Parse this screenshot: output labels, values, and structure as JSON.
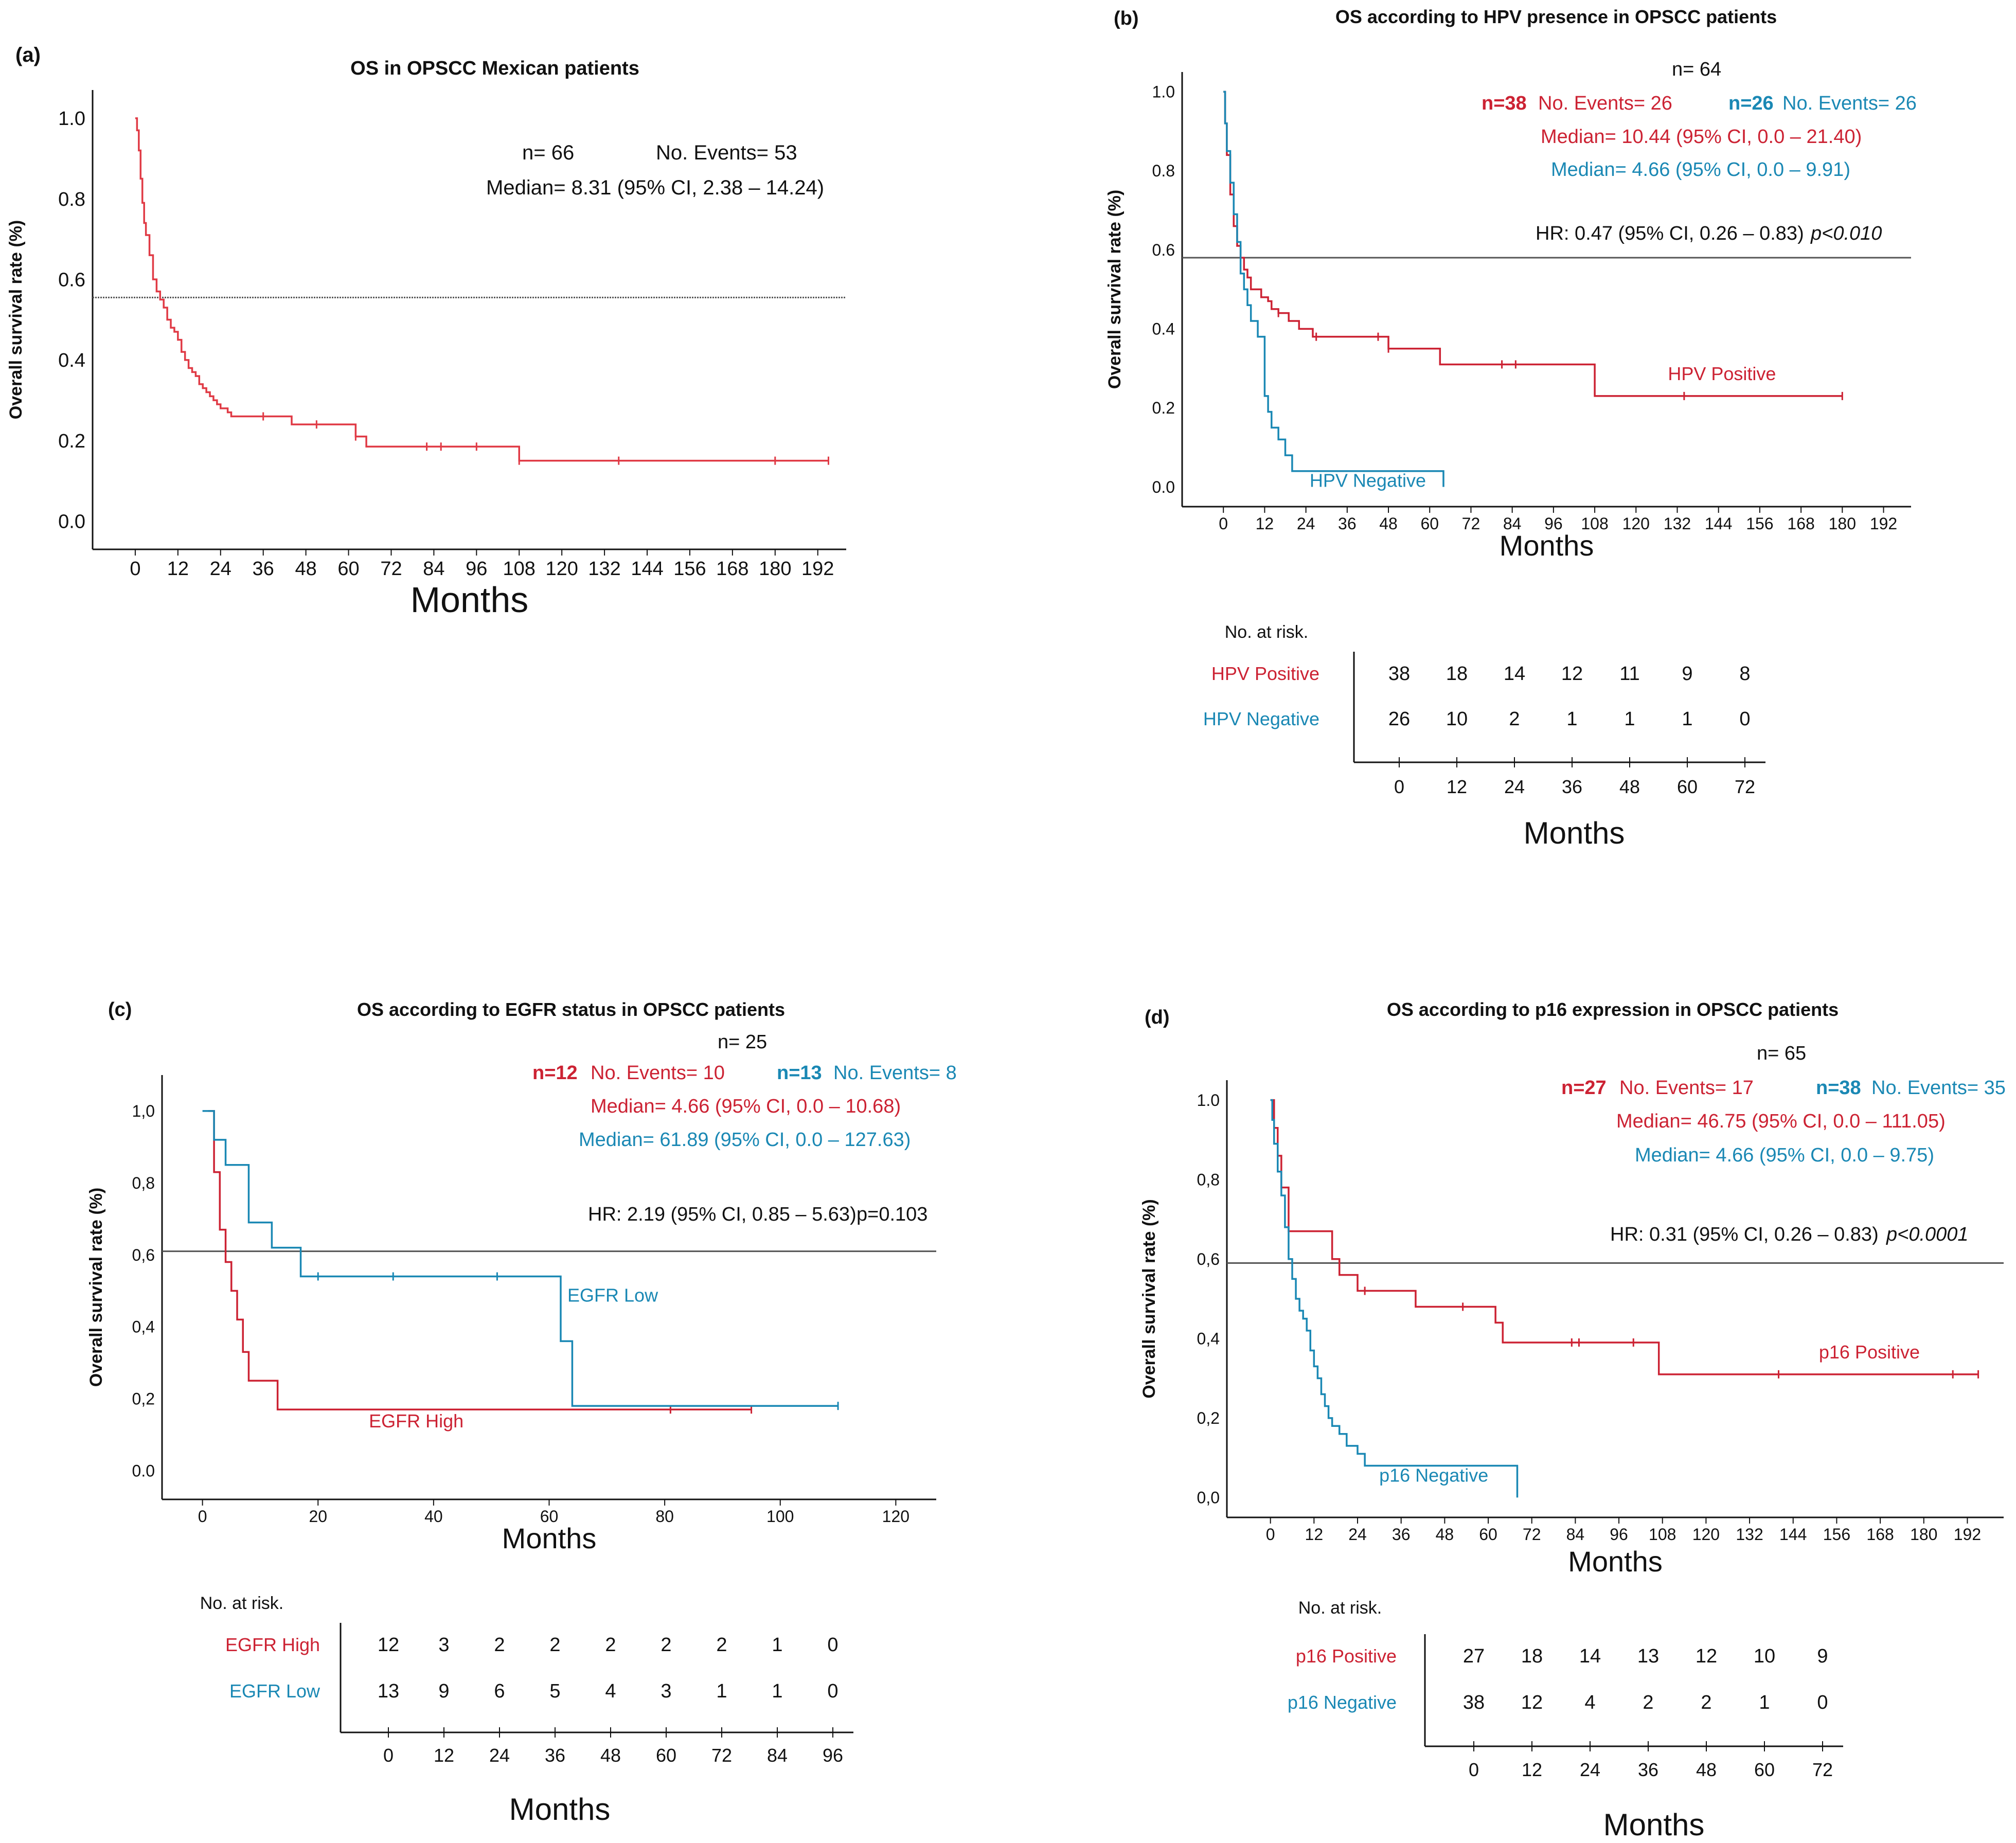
{
  "colors": {
    "positive": "#cc2233",
    "negative": "#1a88b4",
    "single": "#e03a45",
    "axis": "#111111",
    "refline": "#555555",
    "text": "#111111"
  },
  "strings": {
    "risk_title": "No. at risk.",
    "months": "Months",
    "ylabel": "Overall survival rate (%)"
  },
  "panel_a": {
    "tag": "(a)",
    "stat_n": "n= 66",
    "stat_events": "No. Events= 53",
    "stat_median": "Median= 8.31 (95% CI, 2.38 – 14.24)"
  },
  "panel_b": {
    "tag": "(b)",
    "stat_n": "n= 64",
    "pos_n": "n=38",
    "pos_events": "No. Events= 26",
    "neg_n": "n=26",
    "neg_events": "No. Events= 26",
    "pos_median": "Median= 10.44 (95% CI, 0.0 – 21.40)",
    "neg_median": "Median= 4.66 (95% CI, 0.0 – 9.91)",
    "hr": "HR: 0.47 (95% CI, 0.26 – 0.83)",
    "p": "p<0.010"
  },
  "panel_c": {
    "tag": "(c)",
    "stat_n": "n= 25",
    "pos_n": "n=12",
    "pos_events": "No. Events= 10",
    "neg_n": "n=13",
    "neg_events": "No. Events= 8",
    "pos_median": "Median= 4.66 (95% CI, 0.0 – 10.68)",
    "neg_median": "Median= 61.89 (95% CI, 0.0 – 127.63)",
    "hr": "HR: 2.19 (95% CI, 0.85 – 5.63)",
    "p": "p=0.103"
  },
  "panel_d": {
    "tag": "(d)",
    "stat_n": "n= 65",
    "pos_n": "n=27",
    "pos_events": "No. Events= 17",
    "neg_n": "n=38",
    "neg_events": "No. Events= 35",
    "pos_median": "Median= 46.75 (95% CI, 0.0 – 111.05)",
    "neg_median": "Median= 4.66 (95% CI, 0.0 – 9.75)",
    "hr": "HR: 0.31 (95% CI, 0.26 – 0.83)",
    "p": "p<0.0001"
  },
  "chart_data": [
    {
      "id": "a",
      "type": "line",
      "title": "OS in OPSCC Mexican patients",
      "xlabel": "Months",
      "ylabel": "Overall survival rate (%)",
      "xlim": [
        -12,
        200
      ],
      "ylim": [
        -0.07,
        1.07
      ],
      "xticks": [
        0,
        12,
        24,
        36,
        48,
        60,
        72,
        84,
        96,
        108,
        120,
        132,
        144,
        156,
        168,
        180,
        192
      ],
      "yticks": [
        0.0,
        0.2,
        0.4,
        0.6,
        0.8,
        1.0
      ],
      "ytick_labels": [
        "0.0",
        "0.2",
        "0.4",
        "0.6",
        "0.8",
        "1.0"
      ],
      "refline": 0.555,
      "series": [
        {
          "name": "OS",
          "color_key": "single",
          "x": [
            0,
            0.5,
            1,
            1.5,
            2,
            2.5,
            3,
            4,
            5,
            6,
            7,
            8,
            9,
            10,
            11,
            12,
            13,
            14,
            15,
            16,
            17,
            18,
            19,
            20,
            21,
            22,
            23,
            24,
            26,
            27,
            44,
            62,
            65,
            108,
            195
          ],
          "y": [
            1.0,
            0.97,
            0.92,
            0.85,
            0.79,
            0.74,
            0.71,
            0.66,
            0.6,
            0.57,
            0.55,
            0.53,
            0.5,
            0.48,
            0.47,
            0.45,
            0.42,
            0.4,
            0.38,
            0.37,
            0.36,
            0.34,
            0.33,
            0.32,
            0.31,
            0.3,
            0.29,
            0.28,
            0.27,
            0.26,
            0.24,
            0.21,
            0.185,
            0.15,
            0.15
          ],
          "censored": [
            36,
            51,
            62,
            82,
            86,
            96,
            108,
            136,
            180,
            195
          ]
        }
      ],
      "labels": []
    },
    {
      "id": "b",
      "type": "line",
      "title": "OS according to HPV presence in OPSCC patients",
      "xlabel": "Months",
      "ylabel": "Overall survival rate (%)",
      "xlim": [
        -12,
        200
      ],
      "ylim": [
        -0.05,
        1.05
      ],
      "xticks": [
        0,
        12,
        24,
        36,
        48,
        60,
        72,
        84,
        96,
        108,
        120,
        132,
        144,
        156,
        168,
        180,
        192
      ],
      "yticks": [
        0.0,
        0.2,
        0.4,
        0.6,
        0.8,
        1.0
      ],
      "ytick_labels": [
        "0.0",
        "0.2",
        "0.4",
        "0.6",
        "0.8",
        "1.0"
      ],
      "refline": 0.58,
      "series": [
        {
          "name": "HPV Positive",
          "color_key": "positive",
          "x": [
            0,
            0.5,
            1,
            2,
            3,
            4,
            5,
            6,
            7,
            8,
            9,
            11,
            13,
            14,
            16,
            19,
            22,
            26,
            48,
            63,
            108,
            180
          ],
          "y": [
            1.0,
            0.92,
            0.84,
            0.74,
            0.66,
            0.61,
            0.58,
            0.55,
            0.53,
            0.5,
            0.5,
            0.48,
            0.47,
            0.45,
            0.44,
            0.42,
            0.4,
            0.38,
            0.35,
            0.31,
            0.23,
            0.23
          ],
          "censored": [
            16,
            27,
            45,
            48,
            81,
            85,
            134,
            180
          ]
        },
        {
          "name": "HPV Negative",
          "color_key": "negative",
          "x": [
            0,
            0.5,
            1,
            2,
            3,
            4,
            5,
            6,
            7,
            8,
            10,
            12,
            13,
            14,
            16,
            18,
            20,
            24,
            64
          ],
          "y": [
            1.0,
            0.92,
            0.85,
            0.77,
            0.69,
            0.62,
            0.54,
            0.5,
            0.46,
            0.42,
            0.38,
            0.23,
            0.19,
            0.15,
            0.12,
            0.08,
            0.04,
            0.04,
            0.0
          ],
          "censored": []
        }
      ],
      "labels": [
        {
          "text": "HPV Positive",
          "color_key": "positive",
          "x": 145,
          "y": 0.27
        },
        {
          "text": "HPV Negative",
          "color_key": "negative",
          "x": 42,
          "y": 0.0
        }
      ],
      "risk_table": {
        "times": [
          "0",
          "12",
          "24",
          "36",
          "48",
          "60",
          "72"
        ],
        "rows": [
          {
            "label": "HPV Positive",
            "color_key": "positive",
            "values": [
              "38",
              "18",
              "14",
              "12",
              "11",
              "9",
              "8"
            ]
          },
          {
            "label": "HPV Negative",
            "color_key": "negative",
            "values": [
              "26",
              "10",
              "2",
              "1",
              "1",
              "1",
              "0"
            ]
          }
        ]
      }
    },
    {
      "id": "c",
      "type": "line",
      "title": "OS according to EGFR status in OPSCC patients",
      "xlabel": "Months",
      "ylabel": "Overall survival rate (%)",
      "xlim": [
        -7,
        127
      ],
      "ylim": [
        -0.08,
        1.1
      ],
      "xticks": [
        0,
        20,
        40,
        60,
        80,
        100,
        120
      ],
      "yticks": [
        0.0,
        0.2,
        0.4,
        0.6,
        0.8,
        1.0
      ],
      "ytick_labels": [
        "0.0",
        "0,2",
        "0,4",
        "0,6",
        "0,8",
        "1,0"
      ],
      "refline": 0.61,
      "series": [
        {
          "name": "EGFR High",
          "color_key": "positive",
          "x": [
            1,
            2,
            3,
            4,
            5,
            6,
            7,
            8,
            13,
            95
          ],
          "y": [
            1.0,
            0.83,
            0.67,
            0.58,
            0.5,
            0.42,
            0.33,
            0.25,
            0.17,
            0.17
          ],
          "censored": [
            81,
            95
          ]
        },
        {
          "name": "EGFR Low",
          "color_key": "negative",
          "x": [
            0,
            2,
            4,
            8,
            12,
            17,
            62,
            64,
            110
          ],
          "y": [
            1.0,
            0.92,
            0.85,
            0.69,
            0.62,
            0.54,
            0.36,
            0.18,
            0.18
          ],
          "censored": [
            20,
            33,
            51,
            110
          ]
        }
      ],
      "labels": [
        {
          "text": "EGFR Low",
          "color_key": "negative",
          "x": 71,
          "y": 0.47
        },
        {
          "text": "EGFR High",
          "color_key": "positive",
          "x": 37,
          "y": 0.12
        }
      ],
      "risk_table": {
        "times": [
          "0",
          "12",
          "24",
          "36",
          "48",
          "60",
          "72",
          "84",
          "96"
        ],
        "rows": [
          {
            "label": "EGFR High",
            "color_key": "positive",
            "values": [
              "12",
              "3",
              "2",
              "2",
              "2",
              "2",
              "2",
              "1",
              "0"
            ]
          },
          {
            "label": "EGFR Low",
            "color_key": "negative",
            "values": [
              "13",
              "9",
              "6",
              "5",
              "4",
              "3",
              "1",
              "1",
              "0"
            ]
          }
        ]
      }
    },
    {
      "id": "d",
      "type": "line",
      "title": "OS according to p16 expression in OPSCC patients",
      "xlabel": "Months",
      "ylabel": "Overall survival rate (%)",
      "xlim": [
        -12,
        202
      ],
      "ylim": [
        -0.05,
        1.05
      ],
      "xticks": [
        0,
        12,
        24,
        36,
        48,
        60,
        72,
        84,
        96,
        108,
        120,
        132,
        144,
        156,
        168,
        180,
        192
      ],
      "yticks": [
        0.0,
        0.2,
        0.4,
        0.6,
        0.8,
        1.0
      ],
      "ytick_labels": [
        "0,0",
        "0,2",
        "0,4",
        "0,6",
        "0,8",
        "1.0"
      ],
      "refline": 0.59,
      "series": [
        {
          "name": "p16 Positive",
          "color_key": "positive",
          "x": [
            0,
            1,
            2,
            3,
            5,
            17,
            19,
            24,
            40,
            62,
            64,
            107,
            195
          ],
          "y": [
            1.0,
            0.93,
            0.86,
            0.78,
            0.67,
            0.6,
            0.56,
            0.52,
            0.48,
            0.44,
            0.39,
            0.31,
            0.31
          ],
          "censored": [
            26,
            53,
            83,
            85,
            100,
            140,
            188,
            195
          ]
        },
        {
          "name": "p16 Negative",
          "color_key": "negative",
          "x": [
            0,
            0.5,
            1,
            2,
            3,
            4,
            5,
            6,
            7,
            8,
            9,
            10,
            11,
            12,
            13,
            14,
            15,
            16,
            17,
            19,
            21,
            24,
            26,
            28,
            68
          ],
          "y": [
            1.0,
            0.95,
            0.89,
            0.82,
            0.76,
            0.68,
            0.6,
            0.55,
            0.5,
            0.47,
            0.45,
            0.42,
            0.37,
            0.33,
            0.3,
            0.26,
            0.23,
            0.2,
            0.18,
            0.16,
            0.13,
            0.11,
            0.08,
            0.08,
            0.0
          ],
          "censored": []
        }
      ],
      "labels": [
        {
          "text": "p16 Positive",
          "color_key": "positive",
          "x": 165,
          "y": 0.35
        },
        {
          "text": "p16 Negative",
          "color_key": "negative",
          "x": 45,
          "y": 0.04
        }
      ],
      "risk_table": {
        "times": [
          "0",
          "12",
          "24",
          "36",
          "48",
          "60",
          "72"
        ],
        "rows": [
          {
            "label": "p16 Positive",
            "color_key": "positive",
            "values": [
              "27",
              "18",
              "14",
              "13",
              "12",
              "10",
              "9"
            ]
          },
          {
            "label": "p16 Negative",
            "color_key": "negative",
            "values": [
              "38",
              "12",
              "4",
              "2",
              "2",
              "1",
              "0"
            ]
          }
        ]
      }
    }
  ]
}
